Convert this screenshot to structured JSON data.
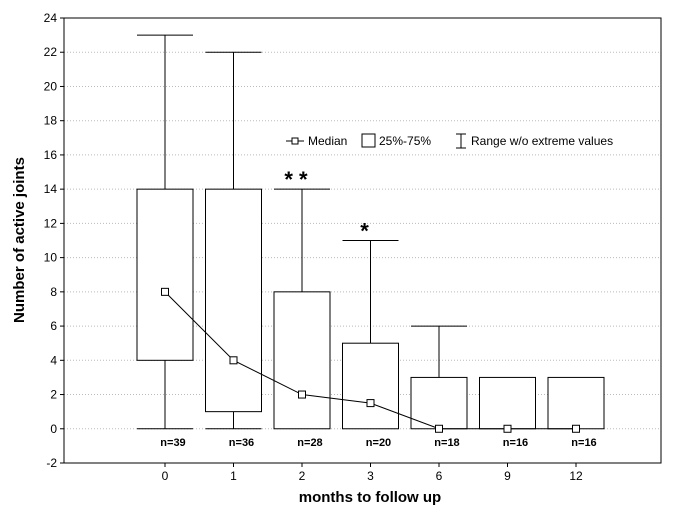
{
  "chart_data": {
    "type": "box",
    "xlabel": "months to follow up",
    "ylabel": "Number of active joints",
    "ylim": [
      -2,
      24
    ],
    "yticks": [
      -2,
      0,
      2,
      4,
      6,
      8,
      10,
      12,
      14,
      16,
      18,
      20,
      22,
      24
    ],
    "grid": "horizontal dotted",
    "categories": [
      "0",
      "1",
      "2",
      "3",
      "6",
      "9",
      "12"
    ],
    "median": [
      8,
      4,
      2,
      1.5,
      0,
      0,
      0
    ],
    "q1": [
      4,
      1,
      0,
      0,
      0,
      0,
      0
    ],
    "q3": [
      14,
      14,
      8,
      5,
      3,
      3,
      3
    ],
    "whisker_min": [
      0,
      0,
      0,
      0,
      0,
      0,
      0
    ],
    "whisker_max": [
      23,
      22,
      14,
      11,
      6,
      3,
      3
    ],
    "n_labels": [
      "n=39",
      "n=36",
      "n=28",
      "n=20",
      "n=18",
      "n=16",
      "n=16"
    ],
    "significance": [
      {
        "category": "2",
        "mark": "**"
      },
      {
        "category": "3",
        "mark": "*"
      }
    ],
    "legend": {
      "placement": "upper-right",
      "entries": [
        "Median",
        "25%-75%",
        "Range w/o extreme values"
      ]
    }
  }
}
